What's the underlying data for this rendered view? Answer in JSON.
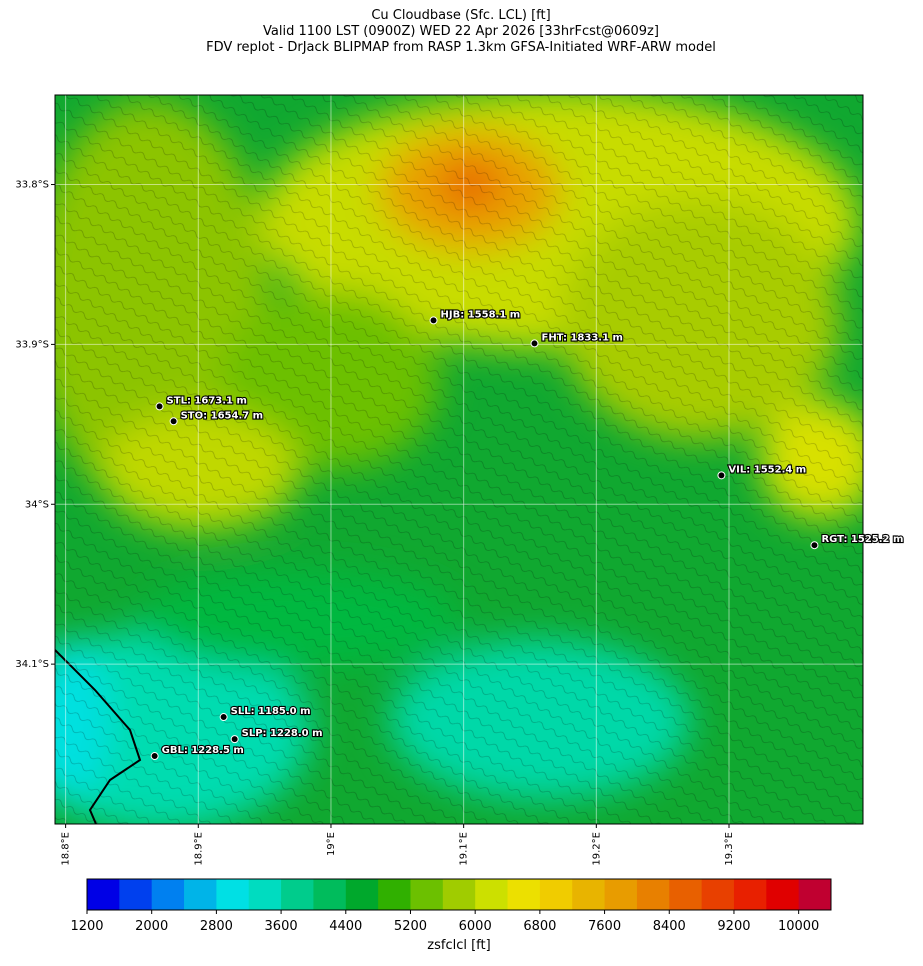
{
  "title_lines": [
    "Cu Cloudbase (Sfc. LCL) [ft]",
    "Valid 1100 LST (0900Z) WED 22 Apr 2026 [33hrFcst@0609z]",
    "FDV replot - DrJack BLIPMAP from RASP 1.3km GFSA-Initiated WRF-ARW model"
  ],
  "map": {
    "xlim": [
      18.792,
      19.401
    ],
    "ylim": [
      -34.2,
      -33.744
    ],
    "xticks": [
      {
        "value": 18.8,
        "label": "18.8°E"
      },
      {
        "value": 18.9,
        "label": "18.9°E"
      },
      {
        "value": 19.0,
        "label": "19°E"
      },
      {
        "value": 19.1,
        "label": "19.1°E"
      },
      {
        "value": 19.2,
        "label": "19.2°E"
      },
      {
        "value": 19.3,
        "label": "19.3°E"
      }
    ],
    "yticks": [
      {
        "value": -33.8,
        "label": "33.8°S"
      },
      {
        "value": -33.9,
        "label": "33.9°S"
      },
      {
        "value": -34.0,
        "label": "34°S"
      },
      {
        "value": -34.1,
        "label": "34.1°S"
      }
    ],
    "grid": true,
    "stations": [
      {
        "label": "HJB: 1558.1 m",
        "lon": 19.0773,
        "lat": -33.885
      },
      {
        "label": "FHT: 1833.1 m",
        "lon": 19.1534,
        "lat": -33.8994
      },
      {
        "label": "STL: 1673.1 m",
        "lon": 18.8708,
        "lat": -33.9388
      },
      {
        "label": "STO: 1654.7 m",
        "lon": 18.8814,
        "lat": -33.9481
      },
      {
        "label": "VIL: 1552.4 m",
        "lon": 19.2943,
        "lat": -33.9819
      },
      {
        "label": "RGT: 1525.2 m",
        "lon": 19.3644,
        "lat": -34.0256
      },
      {
        "label": "SLL: 1185.0 m",
        "lon": 18.9191,
        "lat": -34.1331
      },
      {
        "label": "SLP: 1228.0 m",
        "lon": 18.9274,
        "lat": -34.1469
      },
      {
        "label": "GBL: 1228.5 m",
        "lon": 18.8671,
        "lat": -34.1575
      }
    ]
  },
  "colorbar": {
    "label": "zsfclcl [ft]",
    "lim": [
      1200,
      10400
    ],
    "step": 400,
    "colors": [
      "#0000e6",
      "#0040ee",
      "#0080f0",
      "#00b4e8",
      "#00e0e4",
      "#00dcc0",
      "#00cc8c",
      "#00bc5c",
      "#00a82c",
      "#30b000",
      "#6cc000",
      "#a0cc00",
      "#cce000",
      "#ece000",
      "#f0cc00",
      "#e8b400",
      "#e89c00",
      "#e88000",
      "#e86000",
      "#e84000",
      "#e82000",
      "#e00000",
      "#c00030"
    ],
    "ticks": [
      1200,
      2000,
      2800,
      3600,
      4400,
      5200,
      6000,
      6800,
      7600,
      8400,
      9200,
      10000
    ]
  }
}
